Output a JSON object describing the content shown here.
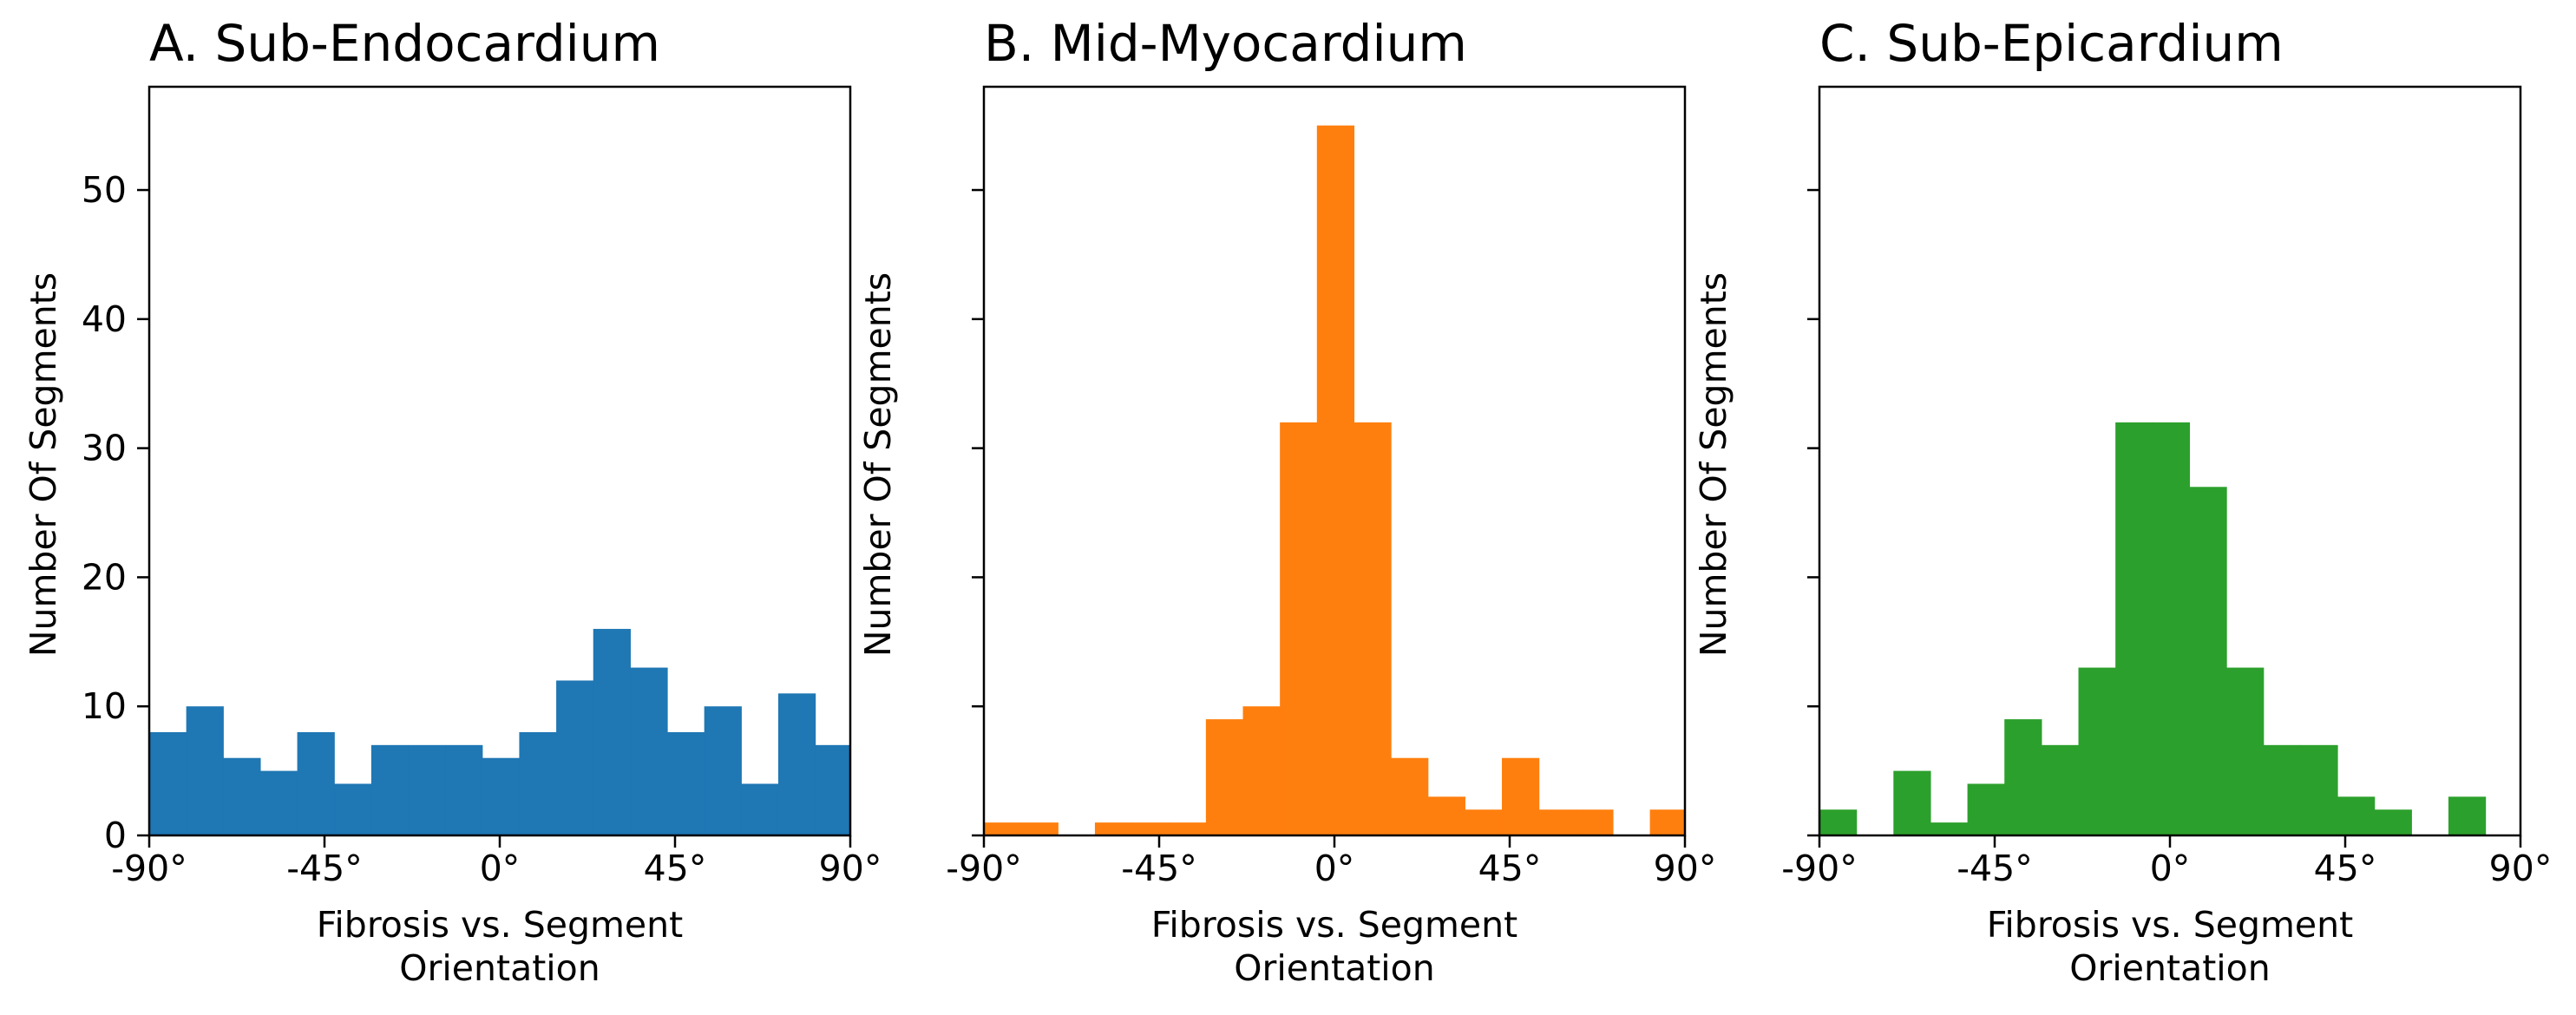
{
  "chart_data": [
    {
      "type": "histogram",
      "title": "A. Sub-Endocardium",
      "xlabel": [
        "Fibrosis vs. Segment",
        "Orientation"
      ],
      "ylabel": "Number Of Segments",
      "xlim": [
        -90,
        90
      ],
      "ylim": [
        0,
        58
      ],
      "xticks": [
        -90,
        -45,
        0,
        45,
        90
      ],
      "xtick_labels": [
        "-90°",
        "-45°",
        "0°",
        "45°",
        "90°"
      ],
      "yticks": [
        0,
        10,
        20,
        30,
        40,
        50
      ],
      "ytick_labels": [
        "0",
        "10",
        "20",
        "30",
        "40",
        "50"
      ],
      "bin_edges_start": -90,
      "bin_width": 9.5,
      "color": "#1f77b4",
      "values": [
        8,
        10,
        6,
        5,
        8,
        4,
        7,
        7,
        7,
        6,
        8,
        12,
        16,
        13,
        8,
        10,
        4,
        11,
        7
      ]
    },
    {
      "type": "histogram",
      "title": "B. Mid-Myocardium",
      "xlabel": [
        "Fibrosis vs. Segment",
        "Orientation"
      ],
      "ylabel": "Number Of Segments",
      "xlim": [
        -90,
        90
      ],
      "ylim": [
        0,
        58
      ],
      "xticks": [
        -90,
        -45,
        0,
        45,
        90
      ],
      "xtick_labels": [
        "-90°",
        "-45°",
        "0°",
        "45°",
        "90°"
      ],
      "yticks": [
        0,
        10,
        20,
        30,
        40,
        50
      ],
      "ytick_labels": [],
      "bin_edges_start": -90,
      "bin_width": 9.5,
      "color": "#ff7f0e",
      "values": [
        1,
        1,
        0,
        1,
        1,
        1,
        9,
        10,
        32,
        55,
        32,
        6,
        3,
        2,
        6,
        2,
        2,
        0,
        2
      ]
    },
    {
      "type": "histogram",
      "title": "C. Sub-Epicardium",
      "xlabel": [
        "Fibrosis vs. Segment",
        "Orientation"
      ],
      "ylabel": "Number Of Segments",
      "xlim": [
        -90,
        90
      ],
      "ylim": [
        0,
        58
      ],
      "xticks": [
        -90,
        -45,
        0,
        45,
        90
      ],
      "xtick_labels": [
        "-90°",
        "-45°",
        "0°",
        "45°",
        "90°"
      ],
      "yticks": [
        0,
        10,
        20,
        30,
        40,
        50
      ],
      "ytick_labels": [],
      "bin_edges_start": -90,
      "bin_width": 9.5,
      "color": "#2ca02c",
      "values": [
        2,
        0,
        5,
        1,
        4,
        9,
        7,
        13,
        32,
        32,
        27,
        13,
        7,
        7,
        3,
        2,
        0,
        3
      ]
    }
  ]
}
